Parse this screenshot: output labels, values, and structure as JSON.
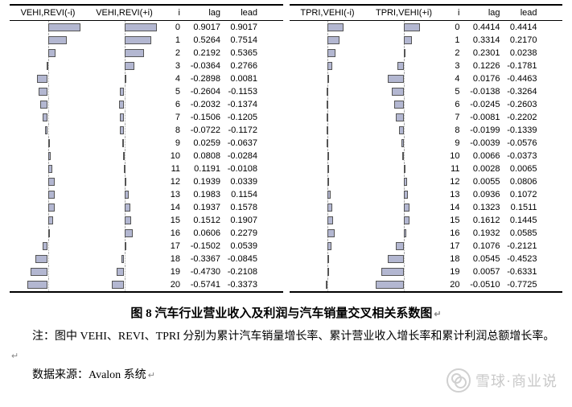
{
  "barStyle": {
    "fill": "#b3b7d1",
    "border": "#555555",
    "bg": "#ffffff"
  },
  "panels": [
    {
      "headers": {
        "neg": "VEHI,REVI(-i)",
        "pos": "VEHI,REVI(+i)",
        "i": "i",
        "lag": "lag",
        "lead": "lead"
      },
      "barColWidth": 95,
      "zeroFrac": 0.5,
      "scale": 45,
      "rows": [
        {
          "i": 0,
          "lag": 0.9017,
          "lead": 0.9017
        },
        {
          "i": 1,
          "lag": 0.5264,
          "lead": 0.7514
        },
        {
          "i": 2,
          "lag": 0.2192,
          "lead": 0.5365
        },
        {
          "i": 3,
          "lag": -0.0364,
          "lead": 0.2766
        },
        {
          "i": 4,
          "lag": -0.2898,
          "lead": 0.0081
        },
        {
          "i": 5,
          "lag": -0.2604,
          "lead": -0.1153
        },
        {
          "i": 6,
          "lag": -0.2032,
          "lead": -0.1374
        },
        {
          "i": 7,
          "lag": -0.1506,
          "lead": -0.1205
        },
        {
          "i": 8,
          "lag": -0.0722,
          "lead": -0.1172
        },
        {
          "i": 9,
          "lag": 0.0259,
          "lead": -0.0637
        },
        {
          "i": 10,
          "lag": 0.0808,
          "lead": -0.0284
        },
        {
          "i": 11,
          "lag": 0.1191,
          "lead": -0.0108
        },
        {
          "i": 12,
          "lag": 0.1939,
          "lead": 0.0339
        },
        {
          "i": 13,
          "lag": 0.1983,
          "lead": 0.1154
        },
        {
          "i": 14,
          "lag": 0.1937,
          "lead": 0.1578
        },
        {
          "i": 15,
          "lag": 0.1512,
          "lead": 0.1907
        },
        {
          "i": 16,
          "lag": 0.0606,
          "lead": 0.2279
        },
        {
          "i": 17,
          "lag": -0.1502,
          "lead": 0.0539
        },
        {
          "i": 18,
          "lag": -0.3367,
          "lead": -0.0845
        },
        {
          "i": 19,
          "lag": -0.473,
          "lead": -0.2108
        },
        {
          "i": 20,
          "lag": -0.5741,
          "lead": -0.3373
        }
      ]
    },
    {
      "headers": {
        "neg": "TPRI,VEHI(-i)",
        "pos": "TPRI,VEHI(+i)",
        "i": "i",
        "lag": "lag",
        "lead": "lead"
      },
      "barColWidth": 95,
      "zeroFrac": 0.5,
      "scale": 45,
      "rows": [
        {
          "i": 0,
          "lag": 0.4414,
          "lead": 0.4414
        },
        {
          "i": 1,
          "lag": 0.3314,
          "lead": 0.217
        },
        {
          "i": 2,
          "lag": 0.2301,
          "lead": 0.0238
        },
        {
          "i": 3,
          "lag": 0.1226,
          "lead": -0.1781
        },
        {
          "i": 4,
          "lag": 0.0176,
          "lead": -0.4463
        },
        {
          "i": 5,
          "lag": -0.0138,
          "lead": -0.3264
        },
        {
          "i": 6,
          "lag": -0.0245,
          "lead": -0.2603
        },
        {
          "i": 7,
          "lag": -0.0081,
          "lead": -0.2202
        },
        {
          "i": 8,
          "lag": -0.0199,
          "lead": -0.1339
        },
        {
          "i": 9,
          "lag": -0.0039,
          "lead": -0.0576
        },
        {
          "i": 10,
          "lag": 0.0066,
          "lead": -0.0373
        },
        {
          "i": 11,
          "lag": 0.0028,
          "lead": 0.0065
        },
        {
          "i": 12,
          "lag": 0.0055,
          "lead": 0.0806
        },
        {
          "i": 13,
          "lag": 0.0936,
          "lead": 0.1072
        },
        {
          "i": 14,
          "lag": 0.1323,
          "lead": 0.1511
        },
        {
          "i": 15,
          "lag": 0.1612,
          "lead": 0.1445
        },
        {
          "i": 16,
          "lag": 0.1932,
          "lead": 0.0585
        },
        {
          "i": 17,
          "lag": 0.1076,
          "lead": -0.2121
        },
        {
          "i": 18,
          "lag": 0.0545,
          "lead": -0.4523
        },
        {
          "i": 19,
          "lag": 0.0057,
          "lead": -0.6331
        },
        {
          "i": 20,
          "lag": -0.051,
          "lead": -0.7725
        }
      ]
    }
  ],
  "caption": "图 8 汽车行业营业收入及利润与汽车销量交叉相关系数图",
  "note": "注：图中 VEHI、REVI、TPRI 分别为累计汽车销量增长率、累计营业收入增长率和累计利润总额增长率。",
  "source": "数据来源：Avalon 系统",
  "ret": "↵",
  "watermark": "雪球·商业说"
}
